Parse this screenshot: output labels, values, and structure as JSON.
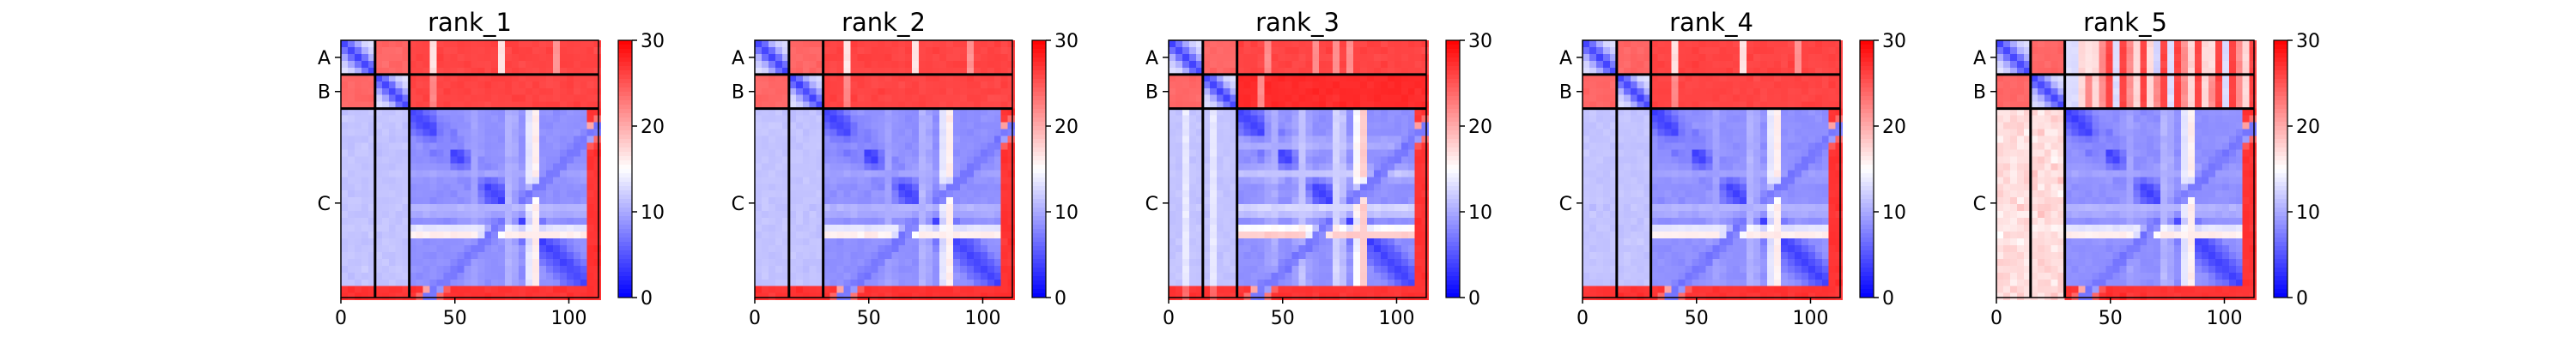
{
  "chart_data": {
    "type": "heatmap",
    "colormap": [
      "#0000ff",
      "#ffffff",
      "#ff0000"
    ],
    "panels": [
      {
        "title": "rank_1",
        "variant": 1
      },
      {
        "title": "rank_2",
        "variant": 2
      },
      {
        "title": "rank_3",
        "variant": 3
      },
      {
        "title": "rank_4",
        "variant": 4
      },
      {
        "title": "rank_5",
        "variant": 5
      }
    ],
    "x_range": [
      0,
      113
    ],
    "y_range": [
      113,
      0
    ],
    "x_ticks": [
      0,
      50,
      100
    ],
    "chains": [
      {
        "label": "A",
        "start": 0,
        "end": 15
      },
      {
        "label": "B",
        "start": 15,
        "end": 30
      },
      {
        "label": "C",
        "start": 30,
        "end": 113
      }
    ],
    "chain_boundaries": [
      15,
      30
    ],
    "colorbar": {
      "min": 0,
      "max": 30,
      "ticks": [
        0,
        10,
        20,
        30
      ]
    }
  }
}
